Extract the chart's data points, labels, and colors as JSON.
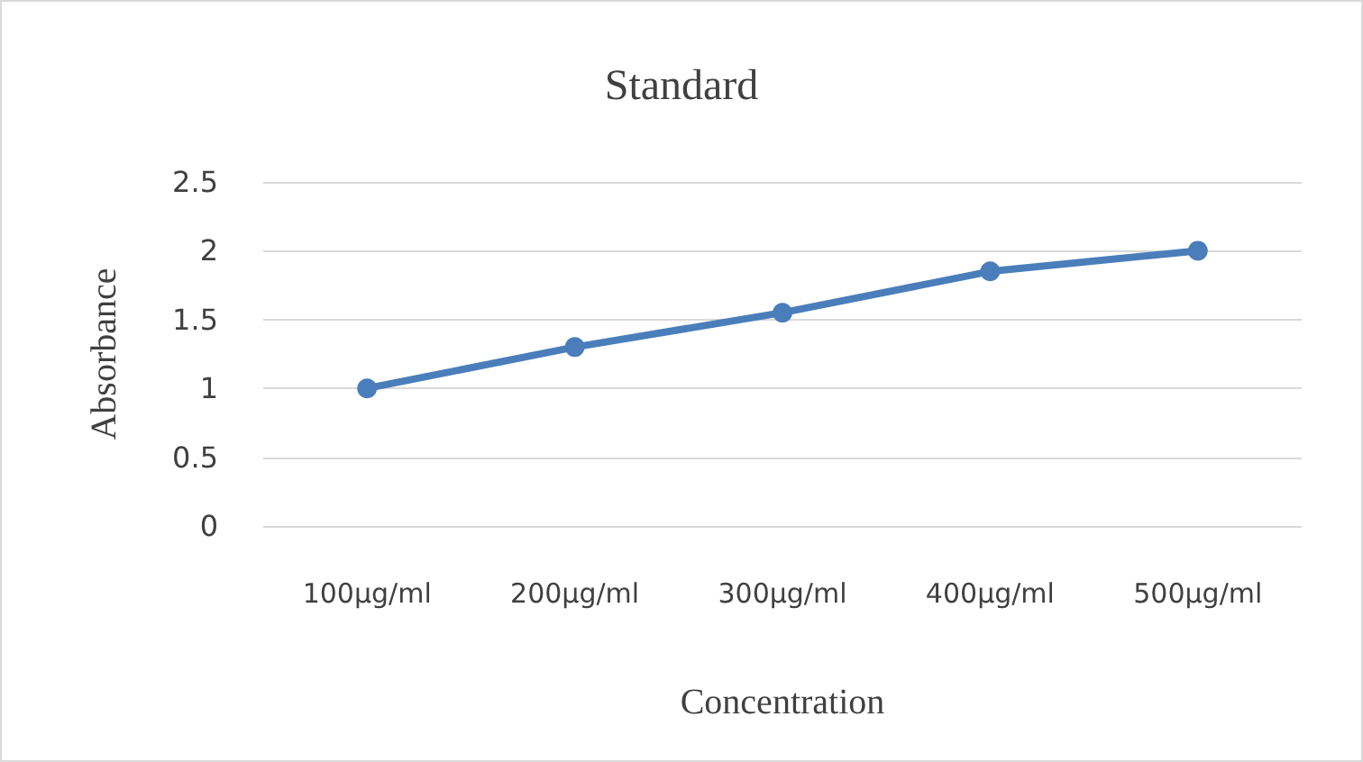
{
  "chart_data": {
    "type": "line",
    "title": "Standard",
    "xlabel": "Concentration",
    "ylabel": "Absorbance",
    "categories": [
      "100µg/ml",
      "200µg/ml",
      "300µg/ml",
      "400µg/ml",
      "500µg/ml"
    ],
    "series": [
      {
        "color": "#4a7ebb",
        "values": [
          1.0,
          1.3,
          1.55,
          1.85,
          2.0
        ]
      }
    ],
    "ylim": [
      0,
      2.5
    ],
    "yticks": [
      0,
      0.5,
      1,
      1.5,
      2,
      2.5
    ],
    "grid": "y",
    "marker": "circle",
    "line_style": "solid"
  }
}
